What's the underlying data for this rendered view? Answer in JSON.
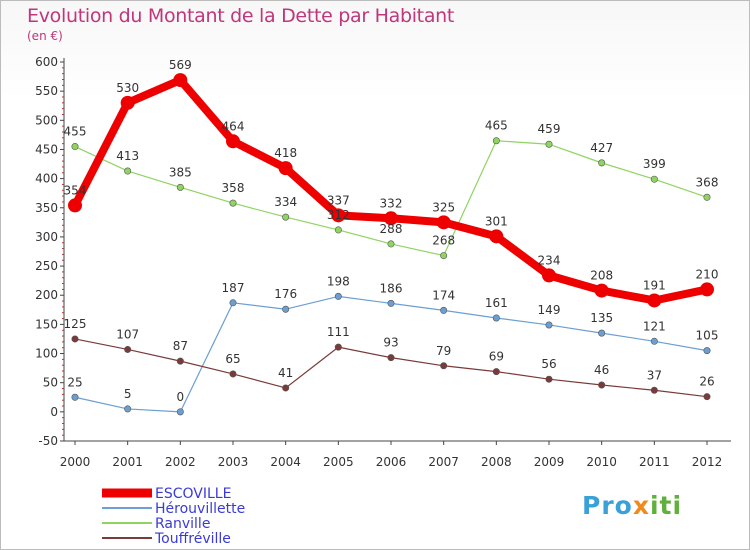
{
  "title": "Evolution du Montant de la Dette par Habitant",
  "unit": "(en €)",
  "logo_text": "Proxiti",
  "chart_data": {
    "type": "line",
    "title": "Evolution du Montant de la Dette par Habitant",
    "subtitle": "(en €)",
    "x": [
      2000,
      2001,
      2002,
      2003,
      2004,
      2005,
      2006,
      2007,
      2008,
      2009,
      2010,
      2011,
      2012
    ],
    "ylim": [
      -50,
      600
    ],
    "yticks": [
      -50,
      0,
      50,
      100,
      150,
      200,
      250,
      300,
      350,
      400,
      450,
      500,
      550,
      600
    ],
    "grid": false,
    "legend": "bottom-left",
    "series": [
      {
        "name": "ESCOVILLE",
        "color": "#ee0000",
        "emphasis": true,
        "values": [
          354,
          530,
          569,
          464,
          418,
          337,
          332,
          325,
          301,
          234,
          208,
          191,
          210
        ]
      },
      {
        "name": "Hérouvillette",
        "color": "#6c9fd1",
        "values": [
          25,
          5,
          0,
          187,
          176,
          198,
          186,
          174,
          161,
          149,
          135,
          121,
          105
        ]
      },
      {
        "name": "Ranville",
        "color": "#8fd461",
        "values": [
          455,
          413,
          385,
          358,
          334,
          312,
          288,
          268,
          465,
          459,
          427,
          399,
          368
        ]
      },
      {
        "name": "Touffréville",
        "color": "#7a3a3a",
        "values": [
          125,
          107,
          87,
          65,
          41,
          111,
          93,
          79,
          69,
          56,
          46,
          37,
          26
        ]
      }
    ]
  }
}
